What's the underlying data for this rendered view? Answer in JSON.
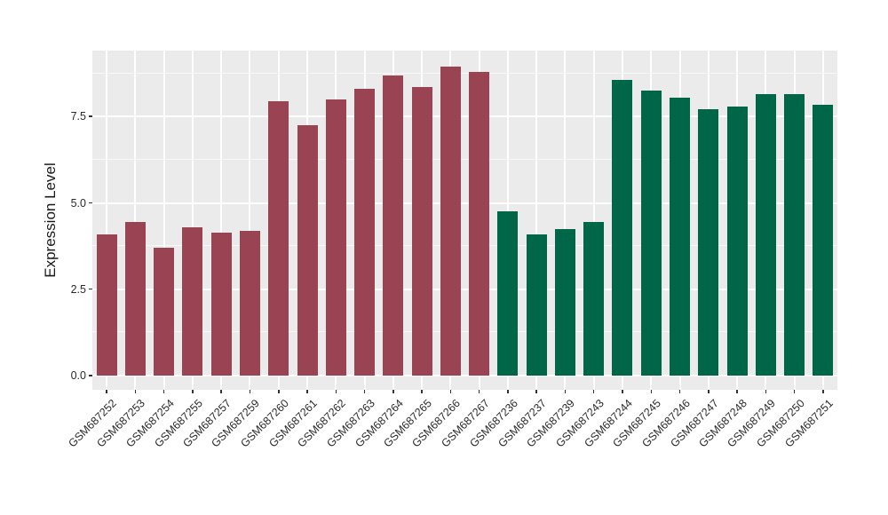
{
  "figure": {
    "background": "#FFFFFF",
    "panel_background": "#EBEBEB",
    "gridline_color": "#FFFFFF",
    "tick_color": "#333333",
    "text_color": "#2B2B2B"
  },
  "chart_data": {
    "type": "bar",
    "title": "",
    "xlabel": "",
    "ylabel": "Expression Level",
    "ylim": [
      0,
      9.4
    ],
    "yticks": [
      0,
      2.5,
      5,
      7.5
    ],
    "ytick_labels": [
      "0.0",
      "2.5",
      "5.0",
      "7.5"
    ],
    "yticks_minor": [
      1.25,
      3.75,
      6.25,
      8.75
    ],
    "grid": "major and minor horizontal white gridlines plus vertical white gridlines at each category, ggplot grey panel",
    "legend_position": "none",
    "series": [
      {
        "color": "#9A4353",
        "categories": [
          "GSM687252",
          "GSM687253",
          "GSM687254",
          "GSM687255",
          "GSM687257",
          "GSM687259",
          "GSM687260",
          "GSM687261",
          "GSM687262",
          "GSM687263",
          "GSM687264",
          "GSM687265",
          "GSM687266",
          "GSM687267"
        ],
        "values": [
          4.1,
          4.45,
          3.7,
          4.3,
          4.15,
          4.2,
          7.95,
          7.25,
          8.0,
          8.3,
          8.7,
          8.35,
          8.95,
          8.8
        ]
      },
      {
        "color": "#006648",
        "categories": [
          "GSM687236",
          "GSM687237",
          "GSM687239",
          "GSM687243",
          "GSM687244",
          "GSM687245",
          "GSM687246",
          "GSM687247",
          "GSM687248",
          "GSM687249",
          "GSM687250",
          "GSM687251"
        ],
        "values": [
          4.75,
          4.1,
          4.25,
          4.45,
          8.55,
          8.25,
          8.05,
          7.7,
          7.8,
          8.15,
          8.15,
          7.85
        ]
      }
    ]
  }
}
